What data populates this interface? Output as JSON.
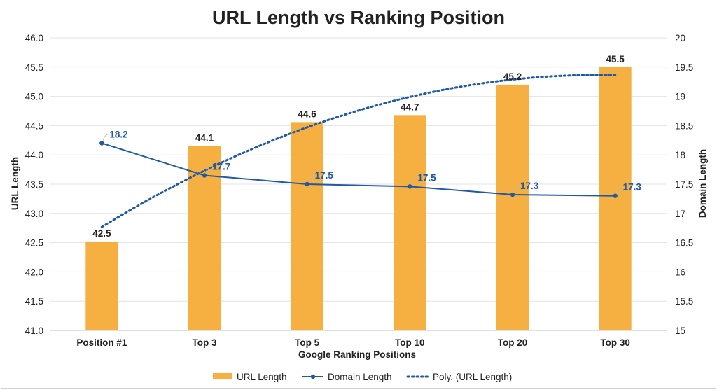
{
  "chart_data": {
    "type": "bar",
    "title": "URL Length vs Ranking Position",
    "xlabel": "Google Ranking Positions",
    "ylabel": "URL Length",
    "y2label": "Domain Length",
    "categories": [
      "Position #1",
      "Top 3",
      "Top 5",
      "Top 10",
      "Top 20",
      "Top 30"
    ],
    "ylim": [
      41.0,
      46.0
    ],
    "y_ticks": [
      "41.0",
      "41.5",
      "42.0",
      "42.5",
      "43.0",
      "43.5",
      "44.0",
      "44.5",
      "45.0",
      "45.5",
      "46.0"
    ],
    "y2lim": [
      15,
      20
    ],
    "y2_ticks": [
      "15",
      "15.5",
      "16",
      "16.5",
      "17",
      "17.5",
      "18",
      "18.5",
      "19",
      "19.5",
      "20"
    ],
    "grid": true,
    "legend_position": "bottom",
    "series": [
      {
        "name": "URL Length",
        "type": "bar",
        "axis": "left",
        "color": "#f5b041",
        "values": [
          42.52,
          44.15,
          44.56,
          44.68,
          45.2,
          45.5
        ],
        "labels": [
          "42.5",
          "44.1",
          "44.6",
          "44.7",
          "45.2",
          "45.5"
        ]
      },
      {
        "name": "Domain Length",
        "type": "line",
        "axis": "right",
        "color": "#1f5aa6",
        "values": [
          18.2,
          17.65,
          17.5,
          17.46,
          17.32,
          17.3
        ],
        "labels": [
          "18.2",
          "17.7",
          "17.5",
          "17.5",
          "17.3",
          "17.3"
        ]
      },
      {
        "name": "Poly. (URL Length)",
        "type": "trendline",
        "style": "dotted",
        "axis": "left",
        "color": "#1f5aa6",
        "degree": 2
      }
    ]
  }
}
